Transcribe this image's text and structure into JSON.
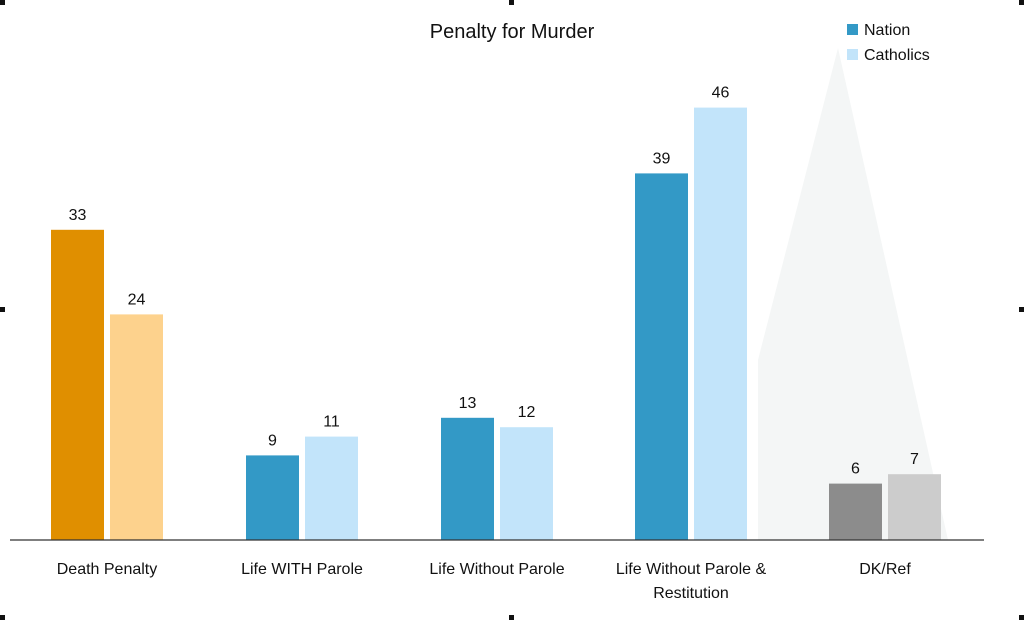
{
  "chart_data": {
    "type": "bar",
    "title": "Penalty for Murder",
    "xlabel": "",
    "ylabel": "",
    "ylim": [
      0,
      50
    ],
    "grid": false,
    "legend_position": "top-right",
    "categories": [
      [
        "Death Penalty"
      ],
      [
        "Life WITH Parole"
      ],
      [
        "Life Without Parole"
      ],
      [
        "Life Without Parole &",
        "Restitution"
      ],
      [
        "DK/Ref"
      ]
    ],
    "series": [
      {
        "name": "Nation",
        "values": [
          33,
          9,
          13,
          39,
          6
        ]
      },
      {
        "name": "Catholics",
        "values": [
          24,
          11,
          12,
          46,
          7
        ]
      }
    ],
    "colors": {
      "Nation": [
        "#e08f00",
        "#3399c6",
        "#3399c6",
        "#3399c6",
        "#8c8c8c"
      ],
      "Catholics": [
        "#fdd28d",
        "#c2e4fa",
        "#c2e4fa",
        "#c2e4fa",
        "#cccccc"
      ],
      "legend": {
        "Nation": "#3399c6",
        "Catholics": "#c2e4fa"
      },
      "axis": "#333333",
      "callout": "#f4f6f6"
    }
  }
}
